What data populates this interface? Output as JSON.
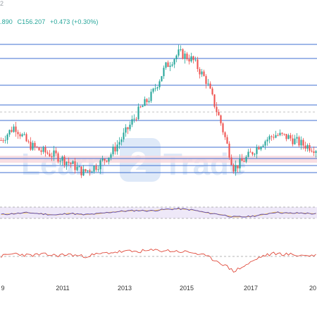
{
  "chart": {
    "header": {
      "values": [
        ".890",
        "C156.207",
        "+0.473 (+0.30%)"
      ],
      "top_mark": "2"
    },
    "watermark": {
      "left": "Learn",
      "badge": "2",
      "right": "Trade"
    },
    "colors": {
      "up": "#26a69a",
      "down": "#ef5350",
      "level": "#3f6fd1",
      "zone": "#f6d6dc",
      "rsi_line": "#5b45b5",
      "rsi_ma": "#f0c24a",
      "osc_line": "#e0493a"
    },
    "x_axis_labels": [
      "9",
      "2011",
      "2013",
      "2015",
      "2017",
      "20"
    ]
  },
  "chart_data": [
    {
      "type": "line",
      "name": "candles",
      "x": [
        "2009",
        "2009.5",
        "2010",
        "2010.5",
        "2011",
        "2011.5",
        "2012",
        "2012.5",
        "2013",
        "2013.5",
        "2014",
        "2014.5",
        "2015",
        "2015.25",
        "2015.5",
        "2015.75",
        "2016",
        "2016.5",
        "2016.7",
        "2017",
        "2017.5",
        "2018",
        "2018.5",
        "2019"
      ],
      "values": [
        108,
        118,
        105,
        100,
        97,
        92,
        85,
        90,
        98,
        112,
        128,
        140,
        160,
        170,
        165,
        150,
        122,
        88,
        96,
        106,
        112,
        110,
        105,
        102
      ],
      "levels": [
        176,
        166,
        147,
        133,
        122,
        103,
        95,
        90,
        85
      ],
      "zone": [
        92,
        97
      ]
    },
    {
      "type": "line",
      "name": "rsi",
      "values": [
        44,
        47,
        50,
        46,
        42,
        48,
        43,
        46,
        52,
        56,
        58,
        57,
        62,
        64,
        60,
        50,
        44,
        35,
        36,
        42,
        52,
        48,
        49,
        46
      ],
      "band": [
        30,
        70
      ]
    },
    {
      "type": "line",
      "name": "oscillator",
      "values": [
        0,
        0.3,
        0.1,
        0.2,
        0.1,
        0.2,
        0,
        0.2,
        0.4,
        0.5,
        0.5,
        0.6,
        0.6,
        0.5,
        0.4,
        0,
        -0.6,
        -1.5,
        -0.8,
        0,
        0.3,
        0.2,
        0.1,
        0.1
      ],
      "baseline": 0
    }
  ]
}
